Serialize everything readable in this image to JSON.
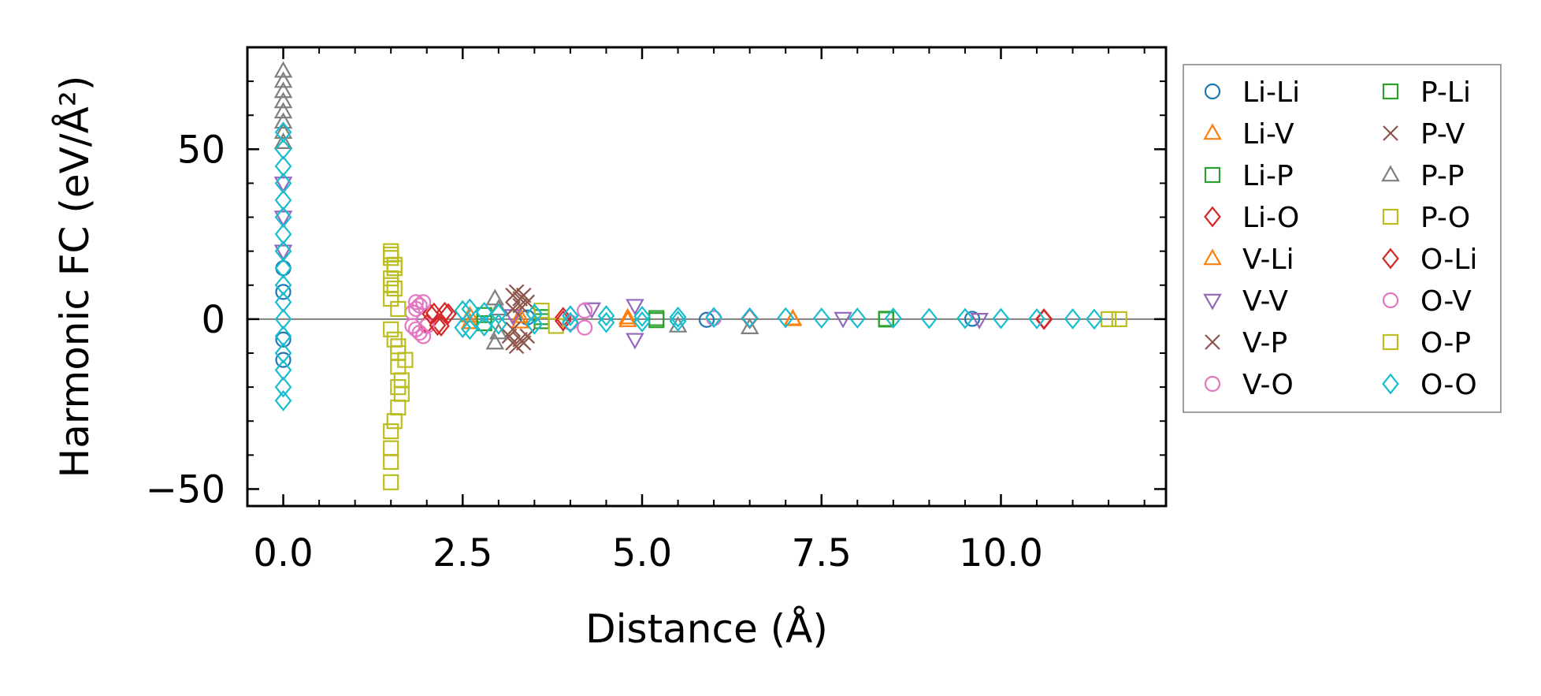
{
  "chart_data": {
    "type": "scatter",
    "xlabel": "Distance (Å)",
    "ylabel": "Harmonic FC (eV/Å²)",
    "xlim": [
      -0.5,
      12.3
    ],
    "ylim": [
      -55,
      80
    ],
    "x_ticks": [
      0.0,
      2.5,
      5.0,
      7.5,
      10.0
    ],
    "x_tick_labels": [
      "0.0",
      "2.5",
      "5.0",
      "7.5",
      "10.0"
    ],
    "y_ticks": [
      -50,
      0,
      50
    ],
    "y_tick_labels": [
      "−50",
      "0",
      "50"
    ],
    "reference_line_y": 0,
    "legend_position": "outside-right",
    "legend_columns": 2,
    "series": [
      {
        "name": "Li-Li",
        "marker": "circle",
        "color": "#1f77b4",
        "points": [
          [
            0.0,
            8
          ],
          [
            0.0,
            -6
          ],
          [
            0.0,
            15
          ],
          [
            0.0,
            -12
          ],
          [
            3.4,
            0.5
          ],
          [
            5.9,
            -0.2
          ],
          [
            9.6,
            0.1
          ]
        ]
      },
      {
        "name": "Li-V",
        "marker": "triangle-up",
        "color": "#ff7f0e",
        "points": [
          [
            2.6,
            1.0
          ],
          [
            3.3,
            -0.8
          ],
          [
            4.8,
            0.4
          ],
          [
            7.1,
            0.1
          ]
        ]
      },
      {
        "name": "Li-P",
        "marker": "square",
        "color": "#2ca02c",
        "points": [
          [
            2.8,
            1.2
          ],
          [
            3.6,
            0.6
          ],
          [
            5.2,
            -0.3
          ],
          [
            8.4,
            0.1
          ]
        ]
      },
      {
        "name": "Li-O",
        "marker": "diamond",
        "color": "#d62728",
        "points": [
          [
            2.0,
            -1.5
          ],
          [
            2.1,
            1.8
          ],
          [
            2.2,
            -2.0
          ],
          [
            2.3,
            1.6
          ],
          [
            3.9,
            0.5
          ],
          [
            6.5,
            0.2
          ],
          [
            10.6,
            0.1
          ]
        ]
      },
      {
        "name": "V-Li",
        "marker": "triangle-up",
        "color": "#ff7f0e",
        "points": [
          [
            2.6,
            -1.0
          ],
          [
            3.3,
            0.8
          ],
          [
            4.8,
            -0.4
          ],
          [
            7.1,
            -0.1
          ]
        ]
      },
      {
        "name": "V-V",
        "marker": "triangle-down",
        "color": "#9467bd",
        "points": [
          [
            0.0,
            30
          ],
          [
            0.0,
            20
          ],
          [
            0.0,
            40
          ],
          [
            3.2,
            1.0
          ],
          [
            4.9,
            4.0
          ],
          [
            4.9,
            -6.0
          ],
          [
            4.3,
            3.0
          ],
          [
            7.8,
            0.2
          ],
          [
            9.7,
            -0.1
          ]
        ]
      },
      {
        "name": "V-P",
        "marker": "x",
        "color": "#8c564b",
        "points": [
          [
            3.2,
            7
          ],
          [
            3.25,
            -8
          ],
          [
            3.3,
            6
          ],
          [
            3.35,
            -7
          ],
          [
            3.4,
            5
          ],
          [
            3.2,
            -3
          ],
          [
            3.3,
            4
          ],
          [
            3.15,
            -5
          ]
        ]
      },
      {
        "name": "V-O",
        "marker": "circle",
        "color": "#e377c2",
        "points": [
          [
            1.8,
            2
          ],
          [
            1.85,
            -3
          ],
          [
            1.9,
            4
          ],
          [
            1.95,
            -5
          ],
          [
            1.85,
            5
          ],
          [
            2.0,
            -2
          ],
          [
            4.2,
            2.5
          ],
          [
            4.0,
            -1.0
          ],
          [
            6.0,
            0.3
          ]
        ]
      },
      {
        "name": "P-Li",
        "marker": "square",
        "color": "#2ca02c",
        "points": [
          [
            2.8,
            -1.2
          ],
          [
            3.6,
            -0.6
          ],
          [
            5.2,
            0.3
          ],
          [
            8.4,
            -0.1
          ]
        ]
      },
      {
        "name": "P-V",
        "marker": "x",
        "color": "#8c564b",
        "points": [
          [
            3.2,
            -7
          ],
          [
            3.25,
            8
          ],
          [
            3.3,
            -6
          ],
          [
            3.35,
            7
          ],
          [
            3.4,
            -5
          ],
          [
            3.2,
            3
          ]
        ]
      },
      {
        "name": "P-P",
        "marker": "triangle-up",
        "color": "#7f7f7f",
        "points": [
          [
            0.0,
            73
          ],
          [
            0.0,
            70
          ],
          [
            0.0,
            67
          ],
          [
            0.0,
            64
          ],
          [
            0.0,
            61
          ],
          [
            0.0,
            58
          ],
          [
            0.0,
            55
          ],
          [
            0.0,
            52
          ],
          [
            2.95,
            6
          ],
          [
            2.95,
            -7
          ],
          [
            3.0,
            3
          ],
          [
            3.0,
            -4
          ],
          [
            5.5,
            -2
          ],
          [
            6.5,
            -2.5
          ]
        ]
      },
      {
        "name": "P-O",
        "marker": "square",
        "color": "#bcbd22",
        "points": [
          [
            1.5,
            20
          ],
          [
            1.5,
            18
          ],
          [
            1.55,
            15
          ],
          [
            1.5,
            12
          ],
          [
            1.55,
            9
          ],
          [
            1.5,
            6
          ],
          [
            1.6,
            3
          ],
          [
            1.5,
            -3
          ],
          [
            1.55,
            -6
          ],
          [
            1.6,
            -10
          ],
          [
            1.6,
            -14
          ],
          [
            1.65,
            -18
          ],
          [
            1.65,
            -22
          ],
          [
            1.6,
            -26
          ],
          [
            1.55,
            -30
          ],
          [
            1.5,
            -33
          ],
          [
            1.5,
            -38
          ],
          [
            1.5,
            -42
          ],
          [
            1.5,
            -48
          ],
          [
            1.7,
            -12
          ],
          [
            3.6,
            2.5
          ],
          [
            3.8,
            -2.0
          ]
        ]
      },
      {
        "name": "O-Li",
        "marker": "diamond",
        "color": "#d62728",
        "points": [
          [
            2.05,
            1.5
          ],
          [
            2.15,
            -1.8
          ],
          [
            2.25,
            2.0
          ],
          [
            3.9,
            -0.5
          ],
          [
            10.6,
            -0.1
          ]
        ]
      },
      {
        "name": "O-V",
        "marker": "circle",
        "color": "#e377c2",
        "points": [
          [
            1.8,
            -2
          ],
          [
            1.85,
            3
          ],
          [
            1.9,
            -4
          ],
          [
            1.95,
            5
          ],
          [
            4.2,
            -2.5
          ]
        ]
      },
      {
        "name": "O-P",
        "marker": "square",
        "color": "#bcbd22",
        "points": [
          [
            1.5,
            19
          ],
          [
            1.55,
            16
          ],
          [
            1.5,
            10
          ],
          [
            1.6,
            -8
          ],
          [
            1.6,
            -20
          ],
          [
            11.5,
            0
          ],
          [
            11.65,
            0
          ]
        ]
      },
      {
        "name": "O-O",
        "marker": "diamond",
        "color": "#17becf",
        "points": [
          [
            0.0,
            55
          ],
          [
            0.0,
            50
          ],
          [
            0.0,
            45
          ],
          [
            0.0,
            40
          ],
          [
            0.0,
            35
          ],
          [
            0.0,
            30
          ],
          [
            0.0,
            25
          ],
          [
            0.0,
            20
          ],
          [
            0.0,
            15
          ],
          [
            0.0,
            10
          ],
          [
            0.0,
            5
          ],
          [
            0.0,
            0
          ],
          [
            0.0,
            -5
          ],
          [
            0.0,
            -10
          ],
          [
            0.0,
            -15
          ],
          [
            0.0,
            -20
          ],
          [
            0.0,
            -24
          ],
          [
            2.5,
            2.5
          ],
          [
            2.5,
            -2.5
          ],
          [
            2.6,
            3
          ],
          [
            2.6,
            -3
          ],
          [
            2.8,
            2
          ],
          [
            2.8,
            -2
          ],
          [
            3.0,
            1.5
          ],
          [
            3.0,
            -1.5
          ],
          [
            3.5,
            1.5
          ],
          [
            3.5,
            -1.5
          ],
          [
            4.0,
            1
          ],
          [
            4.0,
            -1
          ],
          [
            4.5,
            1
          ],
          [
            4.5,
            -1
          ],
          [
            5.0,
            0.8
          ],
          [
            5.0,
            -0.8
          ],
          [
            5.5,
            0.6
          ],
          [
            5.5,
            -0.6
          ],
          [
            6.0,
            0.5
          ],
          [
            6.5,
            0.4
          ],
          [
            7.0,
            0.4
          ],
          [
            7.5,
            0.3
          ],
          [
            8.0,
            0.3
          ],
          [
            8.5,
            0.3
          ],
          [
            9.0,
            0.2
          ],
          [
            9.5,
            0.2
          ],
          [
            10.0,
            0.2
          ],
          [
            10.5,
            0.1
          ],
          [
            11.0,
            0.1
          ],
          [
            11.3,
            0.0
          ]
        ]
      }
    ]
  }
}
